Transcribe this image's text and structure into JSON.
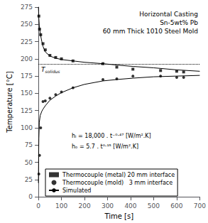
{
  "chart_data": {
    "type": "line",
    "title": [
      "Horizontal Casting",
      "Sn-5wt% Pb",
      "60 mm Thick 1010 Steel Mold"
    ],
    "x_label": "Time [s]",
    "y_label": "Temperature [°C]",
    "xlim": [
      0,
      700
    ],
    "ylim": [
      0,
      275
    ],
    "xticks": [
      0,
      100,
      200,
      300,
      400,
      500,
      600,
      700
    ],
    "yticks": [
      0,
      25,
      50,
      75,
      100,
      125,
      150,
      175,
      200,
      225,
      250,
      275
    ],
    "grid": false,
    "legend": "lower left",
    "reference_line": {
      "value": 192,
      "label": "Tsolidus",
      "line_style": "dotted",
      "color": "black"
    },
    "annotations": [
      "hᵢ = 18,000 . t⁻⁰·⁴⁷ [W/m².K]",
      "hₒ = 5.7 . t⁰·¹⁵ [W/m².K]"
    ],
    "series": [
      {
        "name": "Thermocouple (metal) 20 mm interface",
        "type": "scatter",
        "marker": "square",
        "color": "black",
        "x": [
          2,
          5,
          10,
          20,
          30,
          50,
          75,
          100,
          150,
          280,
          340,
          410,
          530,
          600,
          630
        ],
        "values": [
          262,
          243,
          235,
          222,
          213,
          205,
          202,
          200,
          197,
          193,
          188,
          185,
          183,
          182,
          181
        ]
      },
      {
        "name": "Thermocouple (mold)   3 mm interface",
        "type": "scatter",
        "marker": "circle",
        "color": "black",
        "x": [
          2,
          5,
          10,
          20,
          30,
          50,
          75,
          100,
          150,
          280,
          340,
          410,
          530,
          600,
          630
        ],
        "values": [
          33,
          60,
          100,
          138,
          139,
          143,
          148,
          152,
          158,
          170,
          171,
          175,
          175,
          173,
          173
        ]
      },
      {
        "name": "Simulated",
        "type": "line",
        "line_style": "solid",
        "color": "black",
        "x": [
          0.1,
          1,
          2,
          4,
          8,
          15,
          20,
          30,
          50,
          75,
          100,
          150,
          200,
          280,
          340,
          410,
          500,
          600,
          700
        ],
        "values": [
          275,
          268,
          258,
          248,
          237,
          225,
          218,
          210,
          204,
          201,
          199,
          197,
          195,
          193,
          191,
          189,
          187,
          184,
          182
        ]
      },
      {
        "name": "Simulated",
        "type": "line",
        "line_style": "solid",
        "color": "black",
        "x": [
          0.1,
          1,
          2,
          4,
          8,
          15,
          20,
          30,
          50,
          75,
          100,
          150,
          200,
          280,
          340,
          410,
          500,
          600,
          700
        ],
        "values": [
          20,
          55,
          85,
          108,
          118,
          124,
          127,
          132,
          140,
          146,
          151,
          158,
          163,
          168,
          170,
          172,
          174,
          175,
          176
        ]
      }
    ]
  }
}
